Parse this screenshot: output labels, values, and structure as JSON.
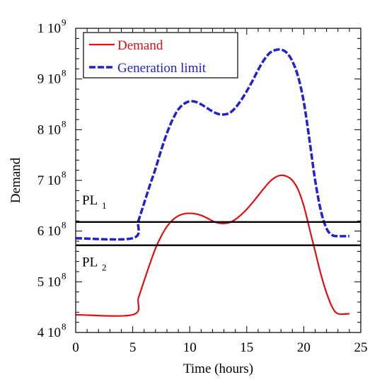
{
  "chart_data": {
    "type": "line",
    "xlabel": "Time (hours)",
    "ylabel": "Demand",
    "xlim": [
      0,
      25
    ],
    "ylim": [
      400000000,
      1000000000
    ],
    "x_ticks": [
      {
        "value": 0,
        "label": "0"
      },
      {
        "value": 5,
        "label": "5"
      },
      {
        "value": 10,
        "label": "10"
      },
      {
        "value": 15,
        "label": "15"
      },
      {
        "value": 20,
        "label": "20"
      },
      {
        "value": 25,
        "label": "25"
      }
    ],
    "y_ticks": [
      {
        "value": 400000000,
        "mant": "4 10",
        "exp": "8"
      },
      {
        "value": 500000000,
        "mant": "5 10",
        "exp": "8"
      },
      {
        "value": 600000000,
        "mant": "6 10",
        "exp": "8"
      },
      {
        "value": 700000000,
        "mant": "7 10",
        "exp": "8"
      },
      {
        "value": 800000000,
        "mant": "8 10",
        "exp": "8"
      },
      {
        "value": 900000000,
        "mant": "9 10",
        "exp": "8"
      },
      {
        "value": 1000000000,
        "mant": "1 10",
        "exp": "9"
      }
    ],
    "grid": false,
    "legend_position": "top-left",
    "series": [
      {
        "name": "Demand",
        "color": "#dd1111",
        "style": "solid",
        "x": [
          0,
          5,
          5.5,
          6,
          6.5,
          7,
          7.5,
          8,
          8.5,
          9,
          9.5,
          10,
          10.5,
          11,
          11.5,
          12,
          12.5,
          13,
          13.5,
          14,
          14.5,
          15,
          15.5,
          16,
          16.5,
          17,
          17.5,
          18,
          18.5,
          19,
          19.5,
          20,
          20.5,
          21,
          21.5,
          22,
          22.5,
          23,
          24
        ],
        "y": [
          435000000,
          435000000,
          468000000,
          502000000,
          535000000,
          566000000,
          590000000,
          609000000,
          622000000,
          630000000,
          634000000,
          635000000,
          634000000,
          631000000,
          626000000,
          620000000,
          616000000,
          615000000,
          617000000,
          623000000,
          632000000,
          643000000,
          656000000,
          670000000,
          684000000,
          697000000,
          706000000,
          710000000,
          708000000,
          700000000,
          682000000,
          650000000,
          605000000,
          560000000,
          515000000,
          478000000,
          450000000,
          437000000,
          437000000
        ]
      },
      {
        "name": "Generation limit",
        "color": "#2222cc",
        "style": "dashed",
        "x": [
          0,
          5,
          5.5,
          6,
          6.5,
          7,
          7.5,
          8,
          8.5,
          9,
          9.5,
          10,
          10.5,
          11,
          11.5,
          12,
          12.5,
          13,
          13.5,
          14,
          14.5,
          15,
          15.5,
          16,
          16.5,
          17,
          17.5,
          18,
          18.5,
          19,
          19.5,
          20,
          20.5,
          21,
          21.5,
          22,
          22.5,
          23,
          24
        ],
        "y": [
          586000000,
          586000000,
          620000000,
          655000000,
          690000000,
          723000000,
          760000000,
          793000000,
          820000000,
          840000000,
          851000000,
          856000000,
          855000000,
          850000000,
          843000000,
          836000000,
          831000000,
          830000000,
          833000000,
          843000000,
          858000000,
          876000000,
          896000000,
          918000000,
          937000000,
          951000000,
          957000000,
          958000000,
          952000000,
          935000000,
          905000000,
          855000000,
          780000000,
          700000000,
          640000000,
          605000000,
          592000000,
          590000000,
          590000000
        ]
      }
    ],
    "reference_lines": [
      {
        "y": 618000000,
        "label": "PL",
        "sub": "1"
      },
      {
        "y": 572000000,
        "label": "PL",
        "sub": "2"
      }
    ]
  }
}
